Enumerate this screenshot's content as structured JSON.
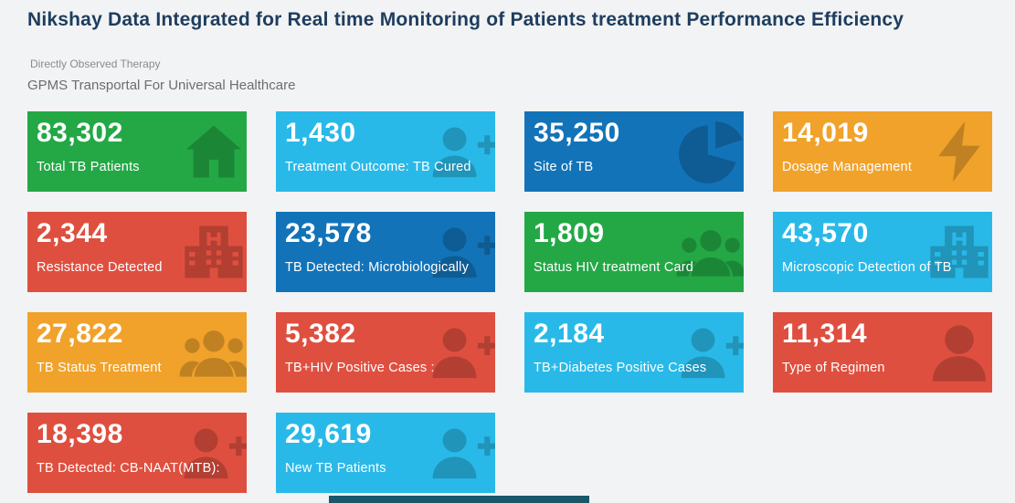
{
  "header": {
    "title": "Nikshay Data Integrated for Real time Monitoring of Patients treatment Performance Efficiency",
    "subtitle_small": "Directly Observed Therapy",
    "subtitle": "GPMS Transportal For Universal Healthcare"
  },
  "colors": {
    "green": "#23a845",
    "cyan": "#29b9e8",
    "blue": "#1273b8",
    "orange": "#f1a22b",
    "red": "#df4f3f",
    "footer": "#1a576b"
  },
  "tiles": [
    {
      "value": "83,302",
      "label": "Total TB Patients",
      "color": "green",
      "icon": "home-icon"
    },
    {
      "value": "1,430",
      "label": "Treatment Outcome: TB Cured",
      "color": "cyan",
      "icon": "user-plus-icon"
    },
    {
      "value": "35,250",
      "label": "Site of TB",
      "color": "blue",
      "icon": "pie-chart-icon"
    },
    {
      "value": "14,019",
      "label": "Dosage Management",
      "color": "orange",
      "icon": "bolt-icon"
    },
    {
      "value": "2,344",
      "label": "Resistance Detected",
      "color": "red",
      "icon": "hospital-icon"
    },
    {
      "value": "23,578",
      "label": "TB Detected: Microbiologically",
      "color": "blue",
      "icon": "user-plus-icon"
    },
    {
      "value": "1,809",
      "label": "Status HIV treatment Card",
      "color": "green",
      "icon": "users-icon"
    },
    {
      "value": "43,570",
      "label": "Microscopic Detection of TB",
      "color": "cyan",
      "icon": "hospital-icon"
    },
    {
      "value": "27,822",
      "label": "TB Status Treatment",
      "color": "orange",
      "icon": "users-icon"
    },
    {
      "value": "5,382",
      "label": "TB+HIV Positive Cases :",
      "color": "red",
      "icon": "user-plus-icon"
    },
    {
      "value": "2,184",
      "label": "TB+Diabetes Positive Cases",
      "color": "cyan",
      "icon": "user-plus-icon"
    },
    {
      "value": "11,314",
      "label": "Type of Regimen",
      "color": "red",
      "icon": "user-icon"
    },
    {
      "value": "18,398",
      "label": "TB Detected: CB-NAAT(MTB):",
      "color": "red",
      "icon": "user-plus-icon"
    },
    {
      "value": "29,619",
      "label": "New TB Patients",
      "color": "cyan",
      "icon": "user-plus-icon"
    }
  ]
}
